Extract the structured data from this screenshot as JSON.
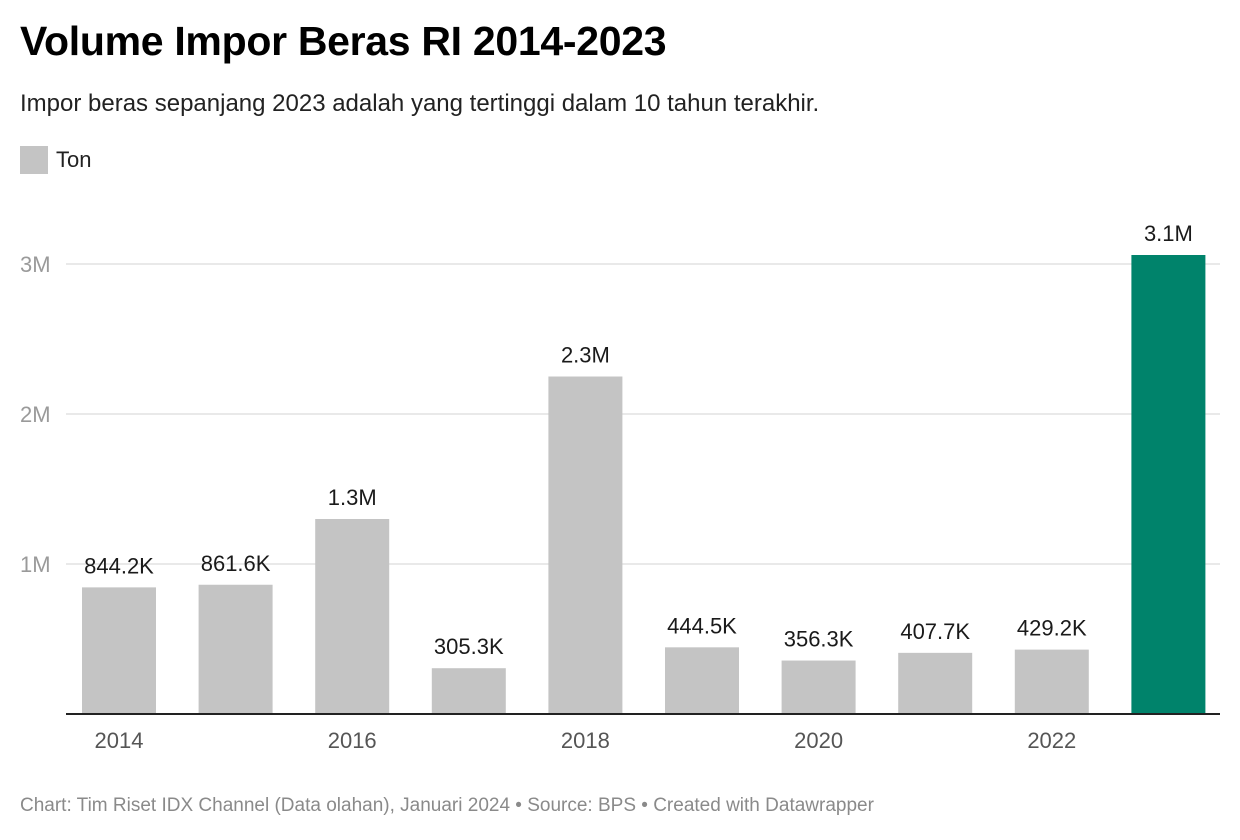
{
  "header": {
    "title": "Volume Impor Beras RI 2014-2023",
    "subtitle": "Impor beras sepanjang 2023 adalah yang tertinggi dalam 10 tahun terakhir."
  },
  "legend": {
    "label": "Ton",
    "color": "#c4c4c4"
  },
  "colors": {
    "default_bar": "#c4c4c4",
    "highlight_bar": "#00836b",
    "grid": "#e2e2e2",
    "axis": "#222222"
  },
  "chart_data": {
    "type": "bar",
    "categories": [
      "2014",
      "2015",
      "2016",
      "2017",
      "2018",
      "2019",
      "2020",
      "2021",
      "2022",
      "2023"
    ],
    "tick_labels": [
      "2014",
      "",
      "2016",
      "",
      "2018",
      "",
      "2020",
      "",
      "2022",
      ""
    ],
    "values": [
      844200,
      861600,
      1300000,
      305300,
      2250000,
      444500,
      356300,
      407700,
      429200,
      3060000
    ],
    "data_labels": [
      "844.2K",
      "861.6K",
      "1.3M",
      "305.3K",
      "2.3M",
      "444.5K",
      "356.3K",
      "407.7K",
      "429.2K",
      "3.1M"
    ],
    "highlight_index": 9,
    "series": [
      {
        "name": "Ton"
      }
    ],
    "y_ticks": [
      1000000,
      2000000,
      3000000
    ],
    "y_tick_labels": [
      "1M",
      "2M",
      "3M"
    ],
    "ylim": [
      0,
      3000000
    ],
    "xlabel": "",
    "ylabel": "",
    "grid": true,
    "legend_position": "top-left"
  },
  "footer": {
    "text": "Chart: Tim Riset IDX Channel (Data olahan), Januari 2024 • Source: BPS • Created with Datawrapper"
  }
}
